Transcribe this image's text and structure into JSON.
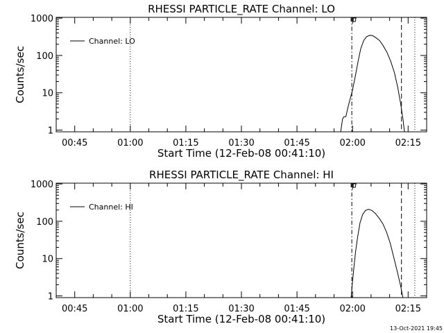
{
  "footer": "13-Oct-2021 19:45",
  "chart_data": [
    {
      "type": "line",
      "title": "RHESSI PARTICLE_RATE Channel: LO",
      "xlabel": "Start Time (12-Feb-08 00:41:10)",
      "ylabel": "Counts/sec",
      "y_scale": "log",
      "xlim_minutes": [
        40,
        140
      ],
      "ylim": [
        0.9,
        1050
      ],
      "x_ticks": [
        45,
        60,
        75,
        90,
        105,
        120,
        135
      ],
      "x_tick_labels": [
        "00:45",
        "01:00",
        "01:15",
        "01:30",
        "01:45",
        "02:00",
        "02:15"
      ],
      "y_ticks": [
        1,
        10,
        100,
        1000
      ],
      "y_tick_labels": [
        "1",
        "10",
        "100",
        "1000"
      ],
      "legend": {
        "label": "Channel: LO",
        "position": "top-left"
      },
      "vertical_lines": [
        {
          "x": 60,
          "style": "dotted"
        },
        {
          "x": 119.8,
          "style": "dashdot"
        },
        {
          "x": 133.2,
          "style": "dashed"
        },
        {
          "x": 136.8,
          "style": "dotted"
        }
      ],
      "series": [
        {
          "points": [
            [
              116.8,
              0.9
            ],
            [
              117.3,
              2.0
            ],
            [
              117.7,
              2.3
            ],
            [
              118.2,
              2.3
            ],
            [
              118.6,
              3.5
            ],
            [
              119.2,
              6
            ],
            [
              120.0,
              12
            ],
            [
              120.8,
              30
            ],
            [
              121.5,
              70
            ],
            [
              122.2,
              150
            ],
            [
              123.0,
              250
            ],
            [
              123.8,
              320
            ],
            [
              124.6,
              345
            ],
            [
              125.4,
              340
            ],
            [
              126.3,
              300
            ],
            [
              127.3,
              250
            ],
            [
              128.3,
              180
            ],
            [
              129.3,
              120
            ],
            [
              130.3,
              70
            ],
            [
              131.3,
              35
            ],
            [
              132.2,
              14
            ],
            [
              133.0,
              5
            ],
            [
              133.6,
              2
            ],
            [
              134.0,
              0.9
            ]
          ]
        }
      ]
    },
    {
      "type": "line",
      "title": "RHESSI PARTICLE_RATE Channel: HI",
      "xlabel": "Start Time (12-Feb-08 00:41:10)",
      "ylabel": "Counts/sec",
      "y_scale": "log",
      "xlim_minutes": [
        40,
        140
      ],
      "ylim": [
        0.9,
        1050
      ],
      "x_ticks": [
        45,
        60,
        75,
        90,
        105,
        120,
        135
      ],
      "x_tick_labels": [
        "00:45",
        "01:00",
        "01:15",
        "01:30",
        "01:45",
        "02:00",
        "02:15"
      ],
      "y_ticks": [
        1,
        10,
        100,
        1000
      ],
      "y_tick_labels": [
        "1",
        "10",
        "100",
        "1000"
      ],
      "legend": {
        "label": "Channel: HI",
        "position": "top-left"
      },
      "vertical_lines": [
        {
          "x": 60,
          "style": "dotted"
        },
        {
          "x": 119.8,
          "style": "dashdot"
        },
        {
          "x": 133.2,
          "style": "dashed"
        },
        {
          "x": 136.8,
          "style": "dotted"
        }
      ],
      "series": [
        {
          "points": [
            [
              119.6,
              0.9
            ],
            [
              119.9,
              2.0
            ],
            [
              120.3,
              5
            ],
            [
              120.8,
              15
            ],
            [
              121.4,
              40
            ],
            [
              122.0,
              90
            ],
            [
              122.7,
              150
            ],
            [
              123.5,
              195
            ],
            [
              124.3,
              210
            ],
            [
              125.2,
              195
            ],
            [
              126.2,
              160
            ],
            [
              127.2,
              120
            ],
            [
              128.2,
              85
            ],
            [
              129.2,
              50
            ],
            [
              130.2,
              25
            ],
            [
              131.2,
              10
            ],
            [
              132.2,
              4
            ],
            [
              133.0,
              1.8
            ],
            [
              133.6,
              0.9
            ]
          ]
        }
      ]
    }
  ]
}
